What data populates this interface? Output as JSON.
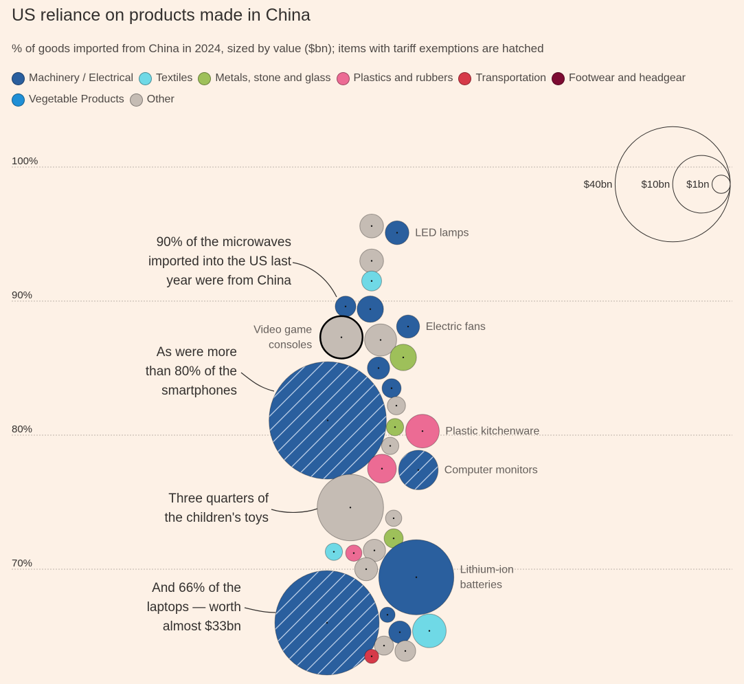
{
  "title": "US reliance on products made in China",
  "subtitle": "% of goods imported from China in 2024, sized by value ($bn); items with tariff exemptions are hatched",
  "legend": [
    {
      "label": "Machinery / Electrical",
      "color": "#2a5f9e"
    },
    {
      "label": "Textiles",
      "color": "#6fd9e6"
    },
    {
      "label": "Metals, stone and glass",
      "color": "#9ec05a"
    },
    {
      "label": "Plastics and rubbers",
      "color": "#ec6b94"
    },
    {
      "label": "Transportation",
      "color": "#d63a49"
    },
    {
      "label": "Footwear and headgear",
      "color": "#7d0b32"
    },
    {
      "label": "Vegetable Products",
      "color": "#1f8fd6"
    },
    {
      "label": "Other",
      "color": "#c5bcb4"
    }
  ],
  "size_key": [
    {
      "label": "$40bn",
      "value": 40
    },
    {
      "label": "$10bn",
      "value": 10
    },
    {
      "label": "$1bn",
      "value": 1
    }
  ],
  "annotations": [
    {
      "text": [
        "90% of the microwaves",
        "imported into the US last",
        "year were from China"
      ]
    },
    {
      "text": [
        "As were more",
        "than 80% of the",
        "smartphones"
      ]
    },
    {
      "text": [
        "Three quarters of",
        "the children's toys"
      ]
    },
    {
      "text": [
        "And 66% of the",
        "laptops — worth",
        "almost $33bn"
      ]
    }
  ],
  "chart_data": {
    "type": "scatter",
    "y_axis": {
      "ticks": [
        70,
        80,
        90,
        100
      ],
      "tick_labels": [
        "70%",
        "80%",
        "90%",
        "100%"
      ],
      "range": [
        63.8,
        104.6
      ],
      "unit": "%"
    },
    "points": [
      {
        "label": "",
        "category": "Other",
        "share": 95.6,
        "value": 1.7,
        "hatched": false
      },
      {
        "label": "LED lamps",
        "category": "Machinery / Electrical",
        "share": 95.1,
        "value": 1.7,
        "hatched": false
      },
      {
        "label": "",
        "category": "Other",
        "share": 93.0,
        "value": 1.7,
        "hatched": false
      },
      {
        "label": "",
        "category": "Textiles",
        "share": 91.5,
        "value": 1.2,
        "hatched": false
      },
      {
        "label": "Microwaves",
        "category": "Machinery / Electrical",
        "share": 89.6,
        "value": 1.3,
        "hatched": false
      },
      {
        "label": "",
        "category": "Machinery / Electrical",
        "share": 89.4,
        "value": 2.1,
        "hatched": false
      },
      {
        "label": "Electric fans",
        "category": "Machinery / Electrical",
        "share": 88.1,
        "value": 1.6,
        "hatched": false
      },
      {
        "label": "Video game consoles",
        "category": "Other",
        "share": 87.3,
        "value": 5.4,
        "hatched": false
      },
      {
        "label": "",
        "category": "Other",
        "share": 87.1,
        "value": 3.1,
        "hatched": false
      },
      {
        "label": "",
        "category": "Metals, stone and glass",
        "share": 85.8,
        "value": 2.1,
        "hatched": false
      },
      {
        "label": "",
        "category": "Machinery / Electrical",
        "share": 85.0,
        "value": 1.5,
        "hatched": false
      },
      {
        "label": "Smartphones",
        "category": "Machinery / Electrical",
        "share": 81.1,
        "value": 41.5,
        "hatched": true
      },
      {
        "label": "",
        "category": "Machinery / Electrical",
        "share": 83.5,
        "value": 1.1,
        "hatched": false
      },
      {
        "label": "",
        "category": "Other",
        "share": 82.2,
        "value": 1.0,
        "hatched": false
      },
      {
        "label": "",
        "category": "Metals, stone and glass",
        "share": 80.6,
        "value": 0.9,
        "hatched": false
      },
      {
        "label": "Plastic kitchenware",
        "category": "Plastics and rubbers",
        "share": 80.3,
        "value": 3.4,
        "hatched": false
      },
      {
        "label": "",
        "category": "Other",
        "share": 79.2,
        "value": 0.9,
        "hatched": false
      },
      {
        "label": "",
        "category": "Plastics and rubbers",
        "share": 77.5,
        "value": 2.5,
        "hatched": false
      },
      {
        "label": "Computer monitors",
        "category": "Machinery / Electrical",
        "share": 77.4,
        "value": 4.7,
        "hatched": true
      },
      {
        "label": "Children's toys",
        "category": "Other",
        "share": 74.6,
        "value": 13.3,
        "hatched": false
      },
      {
        "label": "",
        "category": "Other",
        "share": 73.8,
        "value": 0.8,
        "hatched": false
      },
      {
        "label": "",
        "category": "Metals, stone and glass",
        "share": 72.3,
        "value": 1.1,
        "hatched": false
      },
      {
        "label": "",
        "category": "Textiles",
        "share": 71.3,
        "value": 0.9,
        "hatched": false
      },
      {
        "label": "",
        "category": "Plastics and rubbers",
        "share": 71.2,
        "value": 0.8,
        "hatched": false
      },
      {
        "label": "",
        "category": "Other",
        "share": 71.4,
        "value": 1.5,
        "hatched": false
      },
      {
        "label": "",
        "category": "Other",
        "share": 70.0,
        "value": 1.6,
        "hatched": false
      },
      {
        "label": "Lithium-ion batteries",
        "category": "Machinery / Electrical",
        "share": 69.4,
        "value": 17.0,
        "hatched": false
      },
      {
        "label": "Laptops",
        "category": "Machinery / Electrical",
        "share": 66.0,
        "value": 32.8,
        "hatched": true
      },
      {
        "label": "",
        "category": "Machinery / Electrical",
        "share": 66.6,
        "value": 0.7,
        "hatched": false
      },
      {
        "label": "",
        "category": "Machinery / Electrical",
        "share": 65.3,
        "value": 1.5,
        "hatched": false
      },
      {
        "label": "",
        "category": "Textiles",
        "share": 65.4,
        "value": 3.4,
        "hatched": false
      },
      {
        "label": "",
        "category": "Other",
        "share": 64.3,
        "value": 1.1,
        "hatched": false
      },
      {
        "label": "",
        "category": "Other",
        "share": 63.9,
        "value": 1.3,
        "hatched": false
      },
      {
        "label": "",
        "category": "Transportation",
        "share": 63.5,
        "value": 0.6,
        "hatched": false
      }
    ]
  }
}
